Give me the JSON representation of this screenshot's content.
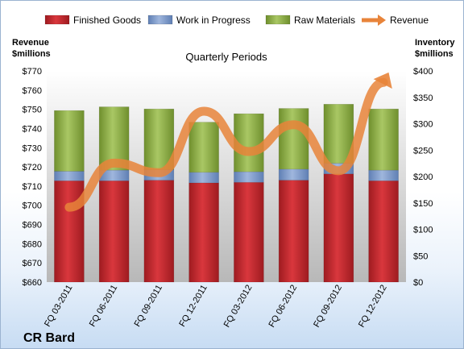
{
  "chart_data": {
    "type": "bar",
    "title": "Quarterly Periods",
    "company": "CR Bard",
    "categories": [
      "FQ 03-2011",
      "FQ 06-2011",
      "FQ 09-2011",
      "FQ 12-2011",
      "FQ 03-2012",
      "FQ 06-2012",
      "FQ 09-2012",
      "FQ 12-2012"
    ],
    "stacked": true,
    "series": [
      {
        "name": "Finished Goods",
        "axis": "right",
        "color": "#c0282e",
        "values": [
          192,
          192,
          193,
          188,
          189,
          193,
          205,
          192
        ]
      },
      {
        "name": "Work in Progress",
        "axis": "right",
        "color": "#7f9ac9",
        "values": [
          18,
          20,
          20,
          20,
          20,
          21,
          20,
          20
        ]
      },
      {
        "name": "Raw Materials",
        "axis": "right",
        "color": "#92b24a",
        "values": [
          115,
          120,
          115,
          95,
          110,
          115,
          112,
          116
        ]
      },
      {
        "name": "Revenue",
        "axis": "left",
        "type": "line",
        "color": "#e8843a",
        "values": [
          699,
          722,
          717,
          749,
          728,
          742,
          718,
          764
        ]
      }
    ],
    "left_axis": {
      "label_line1": "Revenue",
      "label_line2": "$millions",
      "min": 660,
      "max": 770,
      "step": 10,
      "tick_prefix": "$"
    },
    "right_axis": {
      "label_line1": "Inventory",
      "label_line2": "$millions",
      "min": 0,
      "max": 400,
      "step": 50,
      "tick_prefix": "$"
    },
    "legend_position": "top",
    "grid": false
  }
}
